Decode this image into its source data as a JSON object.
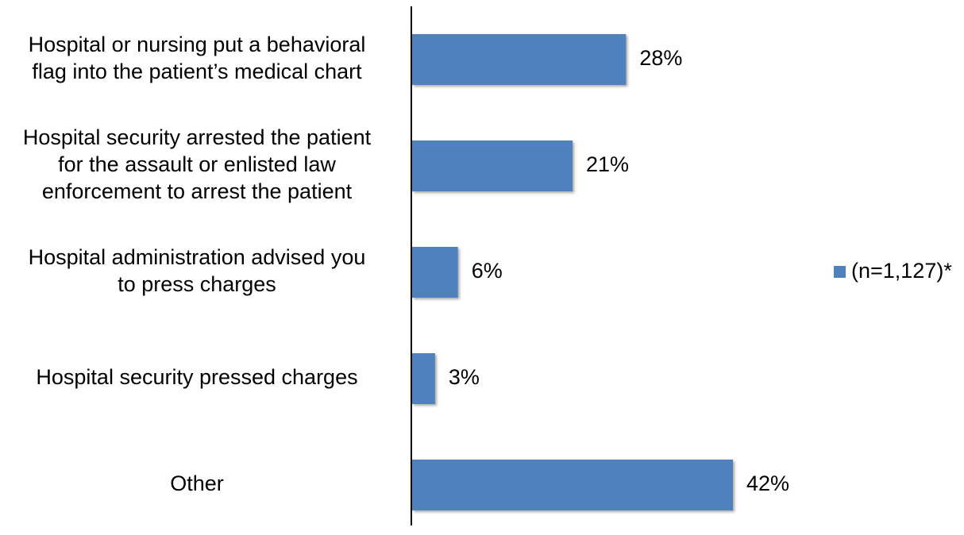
{
  "chart_data": {
    "type": "bar",
    "orientation": "horizontal",
    "categories": [
      [
        "Hospital or nursing put a behavioral",
        "flag into the patient’s medical chart"
      ],
      [
        "Hospital security arrested the patient",
        "for the assault or enlisted law",
        "enforcement to arrest the patient"
      ],
      [
        "Hospital administration advised you",
        "to press charges"
      ],
      [
        "Hospital security pressed charges"
      ],
      [
        "Other"
      ]
    ],
    "series": [
      {
        "name": "(n=1,127)*",
        "values": [
          28,
          21,
          6,
          3,
          42
        ],
        "color": "#4F81BD"
      }
    ],
    "data_labels": [
      "28%",
      "21%",
      "6%",
      "3%",
      "42%"
    ],
    "xlim": [
      0,
      42
    ],
    "legend_position": "right",
    "grid": false
  }
}
